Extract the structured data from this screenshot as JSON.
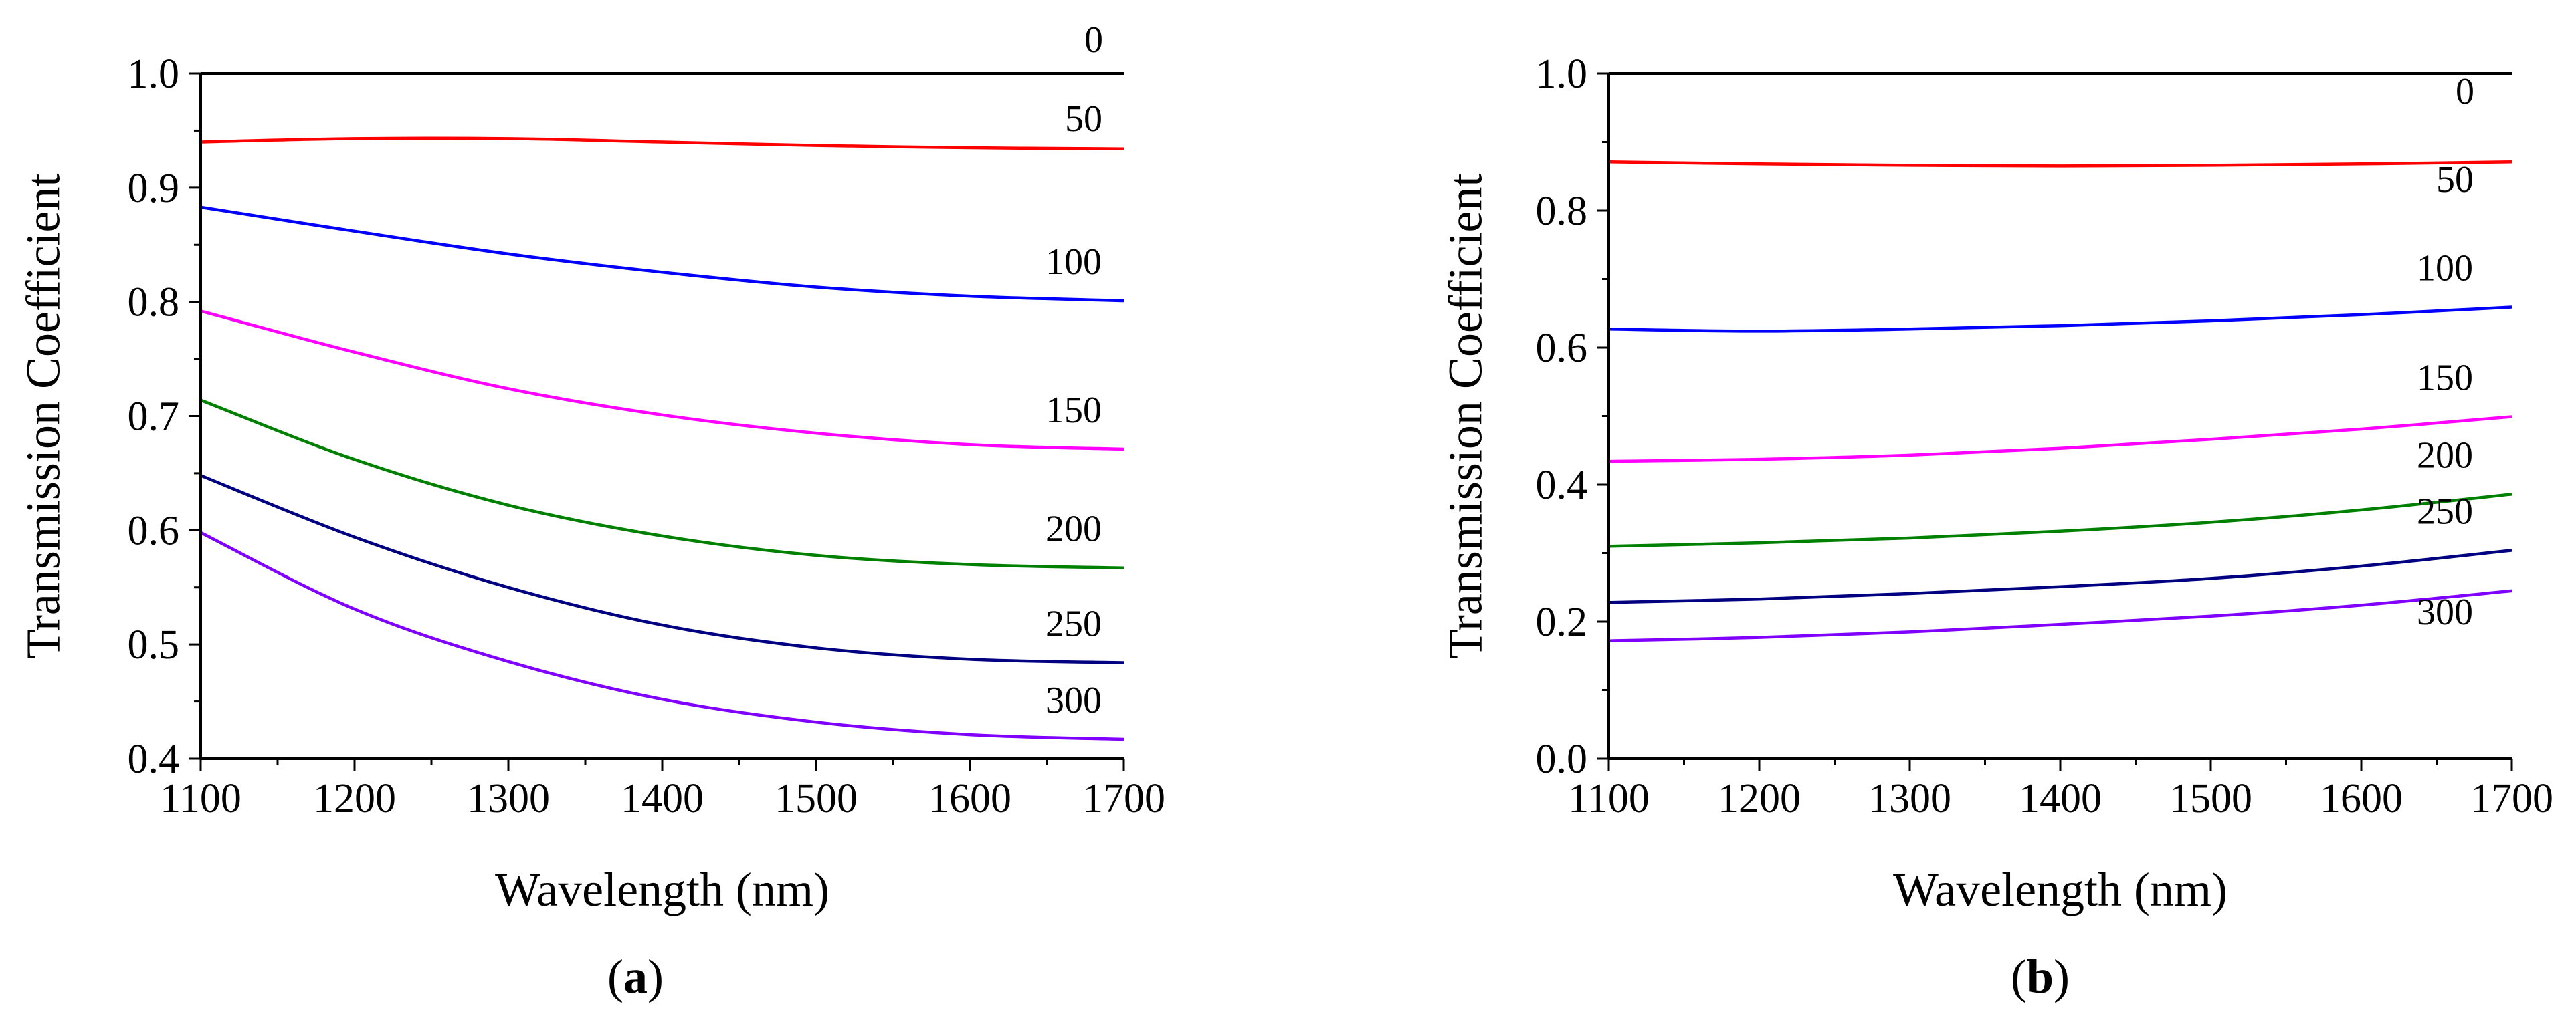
{
  "chart_data": [
    {
      "type": "line",
      "panel_label": "a",
      "xlabel": "Wavelength (nm)",
      "ylabel": "Transmission Coefficient",
      "xlim": [
        1100,
        1700
      ],
      "ylim": [
        0.4,
        1.0
      ],
      "xticks": [
        "1100",
        "1200",
        "1300",
        "1400",
        "1500",
        "1600",
        "1700"
      ],
      "yticks": [
        "0.4",
        "0.5",
        "0.6",
        "0.7",
        "0.8",
        "0.9",
        "1.0"
      ],
      "x": [
        1100,
        1200,
        1300,
        1400,
        1500,
        1600,
        1700
      ],
      "series": [
        {
          "name": "0",
          "color": "#000000",
          "values": [
            1.0,
            1.0,
            1.0,
            1.0,
            1.0,
            1.0,
            1.0
          ]
        },
        {
          "name": "50",
          "color": "#ff0000",
          "values": [
            0.94,
            0.943,
            0.943,
            0.94,
            0.937,
            0.935,
            0.934
          ]
        },
        {
          "name": "100",
          "color": "#0000ff",
          "values": [
            0.883,
            0.862,
            0.842,
            0.826,
            0.813,
            0.805,
            0.801
          ]
        },
        {
          "name": "150",
          "color": "#ff00ff",
          "values": [
            0.792,
            0.756,
            0.724,
            0.701,
            0.685,
            0.675,
            0.671
          ]
        },
        {
          "name": "200",
          "color": "#008000",
          "values": [
            0.714,
            0.662,
            0.622,
            0.595,
            0.578,
            0.57,
            0.567
          ]
        },
        {
          "name": "250",
          "color": "#000080",
          "values": [
            0.648,
            0.594,
            0.55,
            0.517,
            0.497,
            0.487,
            0.484
          ]
        },
        {
          "name": "300",
          "color": "#8000ff",
          "values": [
            0.598,
            0.531,
            0.485,
            0.452,
            0.432,
            0.421,
            0.417
          ]
        }
      ]
    },
    {
      "type": "line",
      "panel_label": "b",
      "xlabel": "Wavelength (nm)",
      "ylabel": "Transmission Coefficient",
      "xlim": [
        1100,
        1700
      ],
      "ylim": [
        0.0,
        1.0
      ],
      "xticks": [
        "1100",
        "1200",
        "1300",
        "1400",
        "1500",
        "1600",
        "1700"
      ],
      "yticks": [
        "0.0",
        "0.2",
        "0.4",
        "0.6",
        "0.8",
        "1.0"
      ],
      "x": [
        1100,
        1200,
        1300,
        1400,
        1500,
        1600,
        1700
      ],
      "series": [
        {
          "name": "0",
          "color": "#000000",
          "values": [
            1.0,
            1.0,
            1.0,
            1.0,
            1.0,
            1.0,
            1.0
          ]
        },
        {
          "name": "50",
          "color": "#ff0000",
          "values": [
            0.871,
            0.868,
            0.866,
            0.865,
            0.866,
            0.868,
            0.871
          ]
        },
        {
          "name": "100",
          "color": "#0000ff",
          "values": [
            0.627,
            0.624,
            0.627,
            0.632,
            0.639,
            0.648,
            0.659
          ]
        },
        {
          "name": "150",
          "color": "#ff00ff",
          "values": [
            0.434,
            0.437,
            0.443,
            0.453,
            0.466,
            0.481,
            0.499
          ]
        },
        {
          "name": "200",
          "color": "#008000",
          "values": [
            0.31,
            0.315,
            0.322,
            0.332,
            0.345,
            0.363,
            0.386
          ]
        },
        {
          "name": "250",
          "color": "#000080",
          "values": [
            0.228,
            0.233,
            0.241,
            0.251,
            0.263,
            0.281,
            0.304
          ]
        },
        {
          "name": "300",
          "color": "#8000ff",
          "values": [
            0.172,
            0.177,
            0.185,
            0.196,
            0.208,
            0.224,
            0.245
          ]
        }
      ]
    }
  ]
}
